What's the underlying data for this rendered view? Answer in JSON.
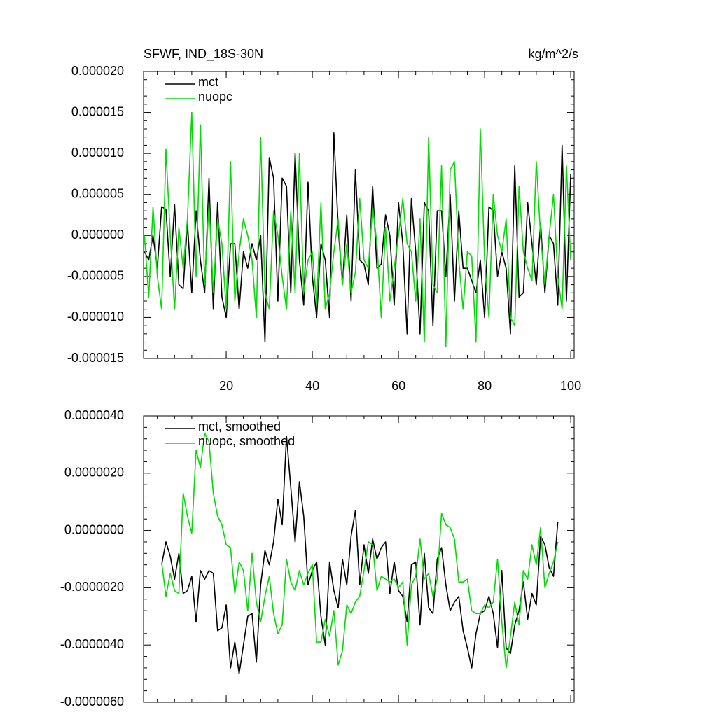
{
  "chart_data": [
    {
      "type": "line",
      "left_title": "SFWF, IND_18S-30N",
      "right_title": "kg/m^2/s",
      "x": [
        1,
        2,
        3,
        4,
        5,
        6,
        7,
        8,
        9,
        10,
        11,
        12,
        13,
        14,
        15,
        16,
        17,
        18,
        19,
        20,
        21,
        22,
        23,
        24,
        25,
        26,
        27,
        28,
        29,
        30,
        31,
        32,
        33,
        34,
        35,
        36,
        37,
        38,
        39,
        40,
        41,
        42,
        43,
        44,
        45,
        46,
        47,
        48,
        49,
        50,
        51,
        52,
        53,
        54,
        55,
        56,
        57,
        58,
        59,
        60,
        61,
        62,
        63,
        64,
        65,
        66,
        67,
        68,
        69,
        70,
        71,
        72,
        73,
        74,
        75,
        76,
        77,
        78,
        79,
        80,
        81,
        82,
        83,
        84,
        85,
        86,
        87,
        88,
        89,
        90,
        91,
        92,
        93,
        94,
        95,
        96,
        97,
        98,
        99,
        100
      ],
      "series": [
        {
          "name": "mct",
          "color": "#000000",
          "values": [
            -2e-06,
            -3e-06,
            0,
            -4e-06,
            3.5e-06,
            3.2e-06,
            -5e-06,
            3.8e-06,
            -6e-06,
            -6.5e-06,
            1.5e-06,
            -7e-06,
            3e-06,
            -3e-06,
            -7e-06,
            7e-06,
            -9e-06,
            4e-06,
            -7.5e-06,
            -1e-05,
            -1e-06,
            -1e-06,
            -9e-06,
            -2e-06,
            -4e-06,
            -1e-06,
            -3e-06,
            0,
            -1.3e-05,
            9.5e-06,
            7e-06,
            -8e-06,
            7e-06,
            6e-06,
            -7e-06,
            1e-05,
            -3e-06,
            -8.5e-06,
            6.5e-06,
            -5e-06,
            -1e-05,
            -1e-06,
            -3e-06,
            -1e-05,
            1.25e-05,
            1e-06,
            -6e-06,
            2.5e-06,
            -8e-06,
            8e-06,
            -3e-06,
            -3.5e-06,
            -6e-06,
            6e-06,
            -4e-06,
            -3.5e-06,
            2.5e-06,
            0,
            -8.5e-06,
            4e-06,
            -1e-06,
            -1.2e-05,
            4.5e-06,
            -2e-06,
            -1.2e-05,
            4e-06,
            3e-06,
            -1.1e-05,
            3e-06,
            3e-06,
            -5e-06,
            5e-06,
            -8e-06,
            3e-06,
            -4e-06,
            -4e-06,
            -5.5e-06,
            -7e-06,
            -3e-06,
            -1e-05,
            3.5e-06,
            3e-06,
            -5e-06,
            -2e-06,
            -4e-06,
            -1.2e-05,
            8.5e-06,
            -7.5e-06,
            -7e-06,
            4e-06,
            -1e-06,
            -6e-06,
            1.5e-06,
            -7e-06,
            0,
            -1e-06,
            -8.5e-06,
            1.1e-05,
            -8e-06,
            7.5e-06
          ]
        },
        {
          "name": "nuopc",
          "color": "#00dd00",
          "values": [
            0,
            -7.5e-06,
            3.5e-06,
            -5e-06,
            -9e-06,
            1.05e-05,
            0,
            -9e-06,
            1e-06,
            -4e-06,
            2e-06,
            1.5e-05,
            -5e-06,
            1.35e-05,
            -6e-06,
            4e-06,
            -7e-06,
            2e-06,
            -1e-06,
            -9e-06,
            9e-06,
            -8e-06,
            -2e-06,
            2e-06,
            0,
            -3e-06,
            -1e-05,
            1.2e-05,
            -7e-06,
            -9e-06,
            3e-06,
            0,
            -5e-06,
            -9e-06,
            3e-06,
            -7e-06,
            1e-05,
            -7e-06,
            -3e-06,
            -2e-06,
            -8.5e-06,
            4e-06,
            -9e-06,
            -7e-06,
            -2e-06,
            2e-06,
            -6e-06,
            -1e-06,
            -7e-06,
            -4.5e-06,
            4.5e-06,
            -3e-06,
            -4e-06,
            3.5e-06,
            -1e-06,
            -1e-05,
            1e-06,
            -8e-06,
            -4e-06,
            0,
            4.5e-06,
            -1e-06,
            -2e-06,
            -8e-06,
            2e-06,
            -1.3e-05,
            1.2e-05,
            -6e-06,
            -7e-06,
            8.5e-06,
            -1.35e-05,
            8e-06,
            9e-06,
            -3e-06,
            -9e-06,
            -2e-06,
            -2.5e-06,
            -1.3e-05,
            1.3e-05,
            -3e-06,
            -1e-05,
            5e-06,
            0,
            -2e-06,
            2e-06,
            -1e-05,
            -1.1e-05,
            6e-06,
            -2e-06,
            -4e-06,
            -5.5e-06,
            9e-06,
            0,
            -6e-06,
            0,
            5e-06,
            -5e-06,
            -9e-06,
            8.5e-06,
            -3e-06
          ]
        }
      ],
      "xlim": [
        0.8,
        100.8
      ],
      "xticks": [
        20,
        40,
        60,
        80,
        100
      ],
      "ylim": [
        -1.5e-05,
        2e-05
      ],
      "yticks": [
        {
          "value": 2e-05,
          "label": "0.000020"
        },
        {
          "value": 1.5e-05,
          "label": "0.000015"
        },
        {
          "value": 1e-05,
          "label": "0.000010"
        },
        {
          "value": 5e-06,
          "label": "0.000005"
        },
        {
          "value": 0,
          "label": "0.000000"
        },
        {
          "value": -5e-06,
          "label": "-0.000005"
        },
        {
          "value": -1e-05,
          "label": "-0.000010"
        },
        {
          "value": -1.5e-05,
          "label": "-0.000015"
        }
      ],
      "legend": "upper left"
    },
    {
      "type": "line",
      "x": [
        5,
        6,
        7,
        8,
        9,
        10,
        11,
        12,
        13,
        14,
        15,
        16,
        17,
        18,
        19,
        20,
        21,
        22,
        23,
        24,
        25,
        26,
        27,
        28,
        29,
        30,
        31,
        32,
        33,
        34,
        35,
        36,
        37,
        38,
        39,
        40,
        41,
        42,
        43,
        44,
        45,
        46,
        47,
        48,
        49,
        50,
        51,
        52,
        53,
        54,
        55,
        56,
        57,
        58,
        59,
        60,
        61,
        62,
        63,
        64,
        65,
        66,
        67,
        68,
        69,
        70,
        71,
        72,
        73,
        74,
        75,
        76,
        77,
        78,
        79,
        80,
        81,
        82,
        83,
        84,
        85,
        86,
        87,
        88,
        89,
        90,
        91,
        92,
        93,
        94,
        95,
        96,
        97
      ],
      "series": [
        {
          "name": "mct, smoothed",
          "color": "#000000",
          "values": [
            -1.2e-06,
            -4e-07,
            -9e-07,
            -1.7e-06,
            -8e-07,
            -2.2e-06,
            -2.1e-06,
            -1.6e-06,
            -3.2e-06,
            -1.4e-06,
            -1.7e-06,
            -1.4e-06,
            -1.5e-06,
            -3.5e-06,
            -3.4e-06,
            -2.6e-06,
            -4.8e-06,
            -3.9e-06,
            -5e-06,
            -4e-06,
            -3e-06,
            -2.9e-06,
            -4.6e-06,
            -1.9e-06,
            -7e-07,
            -1.2e-06,
            -4e-07,
            1.1e-06,
            2e-07,
            3.3e-06,
            1.5e-06,
            -4e-07,
            1.7e-06,
            5e-07,
            -1.9e-06,
            -1.4e-06,
            -1.1e-06,
            -3e-06,
            -4e-06,
            -1.1e-06,
            -2.1e-06,
            -2.7e-06,
            -1e-06,
            -1.9e-06,
            -2e-07,
            7e-07,
            -1.9e-06,
            -5e-07,
            -1.5e-06,
            -3e-07,
            -1e-06,
            -6e-07,
            -4e-07,
            -2.2e-06,
            -1.1e-06,
            -2.1e-06,
            -2.3e-06,
            -3.2e-06,
            -1.2e-06,
            -1.1e-06,
            -3.3e-06,
            -8e-07,
            -2.7e-06,
            -2.9e-06,
            -1e-06,
            -6e-07,
            -1.9e-06,
            -2.8e-06,
            -2.5e-06,
            -2.3e-06,
            -3.5e-06,
            -4.1e-06,
            -4.8e-06,
            -3.6e-06,
            -2.9e-06,
            -2.8e-06,
            -2.3e-06,
            -2.9e-06,
            -4.1e-06,
            -1.4e-06,
            -4.1e-06,
            -4.3e-06,
            -3.3e-06,
            -2.8e-06,
            -1.8e-06,
            -3.1e-06,
            -2.2e-06,
            -2.6e-06,
            -2e-07,
            -5e-07,
            -1.3e-06,
            -1.6e-06,
            3e-07
          ]
        },
        {
          "name": "nuopc, smoothed",
          "color": "#00dd00",
          "values": [
            -1.1e-06,
            -2.3e-06,
            -1.5e-06,
            -2.1e-06,
            -2.2e-06,
            1.3e-06,
            5e-07,
            -1e-07,
            2.8e-06,
            2.2e-06,
            3.4e-06,
            3.1e-06,
            1.3e-06,
            5e-07,
            2e-07,
            -5e-07,
            -6e-07,
            -2.2e-06,
            -1.1e-06,
            -1.4e-06,
            -2.8e-06,
            -8e-07,
            -2.5e-06,
            -3.2e-06,
            -2.3e-06,
            -1.6e-06,
            -2.9e-06,
            -3.6e-06,
            -3.3e-06,
            -1e-06,
            -1.8e-06,
            -2.1e-06,
            -1.4e-06,
            -1.9e-06,
            -1.5e-06,
            -1.2e-06,
            -3.9e-06,
            -3.9e-06,
            -3.1e-06,
            -3.7e-06,
            -2.8e-06,
            -4.7e-06,
            -4.2e-06,
            -2.6e-06,
            -2.9e-06,
            -2.5e-06,
            -2.3e-06,
            -1.4e-06,
            -4e-07,
            -5e-07,
            -2.1e-06,
            -1.6e-06,
            -1.7e-06,
            -1.8e-06,
            -1.7e-06,
            -2e-06,
            -1.8e-06,
            -4e-06,
            -1.9e-06,
            -1.6e-06,
            -3e-07,
            -1.7e-06,
            -1.5e-06,
            -2.3e-06,
            -1.7e-06,
            6e-07,
            2e-07,
            1e-07,
            -3e-07,
            -1.8e-06,
            -1.8e-06,
            -1.7e-06,
            -2.8e-06,
            -2.9e-06,
            -2.9e-06,
            -2.6e-06,
            -2.7e-06,
            -2.5e-06,
            -1e-06,
            -3.2e-06,
            -4.8e-06,
            -3.7e-06,
            -2.5e-06,
            -3.3e-06,
            -1.4e-06,
            -1.7e-06,
            -5e-07,
            -1.2e-06,
            1e-07,
            -2e-06,
            -1.5e-06,
            -1.1e-06,
            -4e-07
          ]
        }
      ],
      "xlim": [
        0.8,
        100.8
      ],
      "xticks": [
        20,
        40,
        60,
        80,
        100
      ],
      "ylim": [
        -6e-06,
        4e-06
      ],
      "yticks": [
        {
          "value": 4e-06,
          "label": "0.0000040"
        },
        {
          "value": 2e-06,
          "label": "0.0000020"
        },
        {
          "value": 0,
          "label": "0.0000000"
        },
        {
          "value": -2e-06,
          "label": "-0.0000020"
        },
        {
          "value": -4e-06,
          "label": "-0.0000040"
        },
        {
          "value": -6e-06,
          "label": "-0.0000060"
        }
      ],
      "legend": "upper left"
    }
  ]
}
